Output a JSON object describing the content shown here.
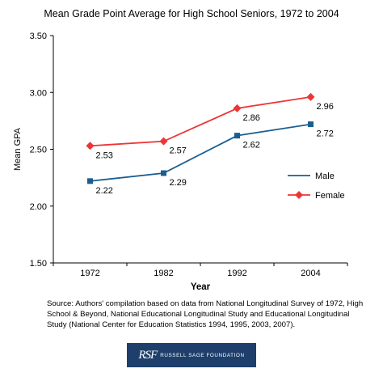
{
  "chart_data": {
    "type": "line",
    "title": "Mean Grade Point Average for High School Seniors, 1972 to 2004",
    "xlabel": "Year",
    "ylabel": "Mean GPA",
    "categories": [
      "1972",
      "1982",
      "1992",
      "2004"
    ],
    "ylim": [
      1.5,
      3.5
    ],
    "yticks": [
      "1.50",
      "2.00",
      "2.50",
      "3.00",
      "3.50"
    ],
    "grid": false,
    "legend_position": "right",
    "series": [
      {
        "name": "Male",
        "values": [
          2.22,
          2.29,
          2.62,
          2.72
        ],
        "labels": [
          "2.22",
          "2.29",
          "2.62",
          "2.72"
        ],
        "color": "#1a5e8f",
        "marker": "square"
      },
      {
        "name": "Female",
        "values": [
          2.53,
          2.57,
          2.86,
          2.96
        ],
        "labels": [
          "2.53",
          "2.57",
          "2.86",
          "2.96"
        ],
        "color": "#ee3434",
        "marker": "diamond"
      }
    ]
  },
  "source_note": "Source: Authors' compilation based on data from National Longitudinal Survey of 1972, High School & Beyond, National Educational Longitudinal Study and Educational Longitudinal Study (National Center for Education Statistics 1994, 1995, 2003, 2007).",
  "logo": {
    "monogram": "RSF",
    "name": "RUSSELL SAGE FOUNDATION"
  }
}
